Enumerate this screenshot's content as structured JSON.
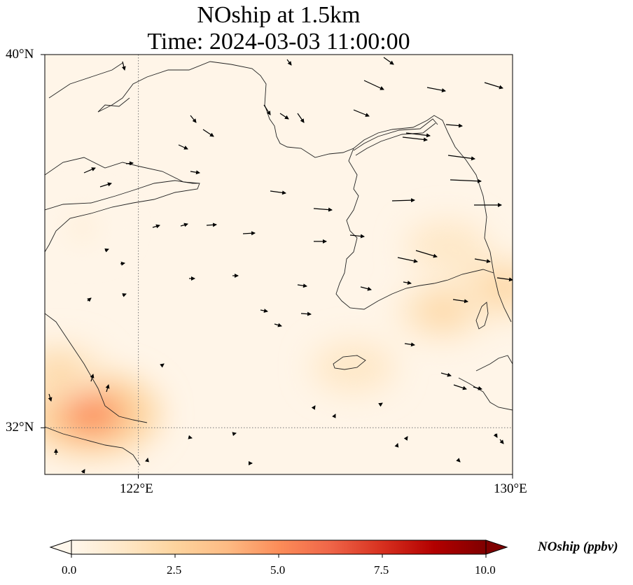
{
  "title": {
    "line1": "NOship at 1.5km",
    "line2": "Time: 2024-03-03 11:00:00"
  },
  "map": {
    "extent": {
      "lon_min": 120,
      "lon_max": 130,
      "lat_min": 31,
      "lat_max": 40
    },
    "lat_ticks": [
      {
        "value": 40,
        "label": "40°N"
      },
      {
        "value": 32,
        "label": "32°N"
      }
    ],
    "lon_ticks": [
      {
        "value": 122,
        "label": "122°E"
      },
      {
        "value": 130,
        "label": "130°E"
      }
    ],
    "gridlines": "dotted at 122°E and 32°N",
    "coastline_color": "#000000",
    "wind_arrow_color": "#000000"
  },
  "chart_data": {
    "type": "heatmap",
    "variable": "NOship",
    "units": "ppbv",
    "colormap": "OrRd",
    "vmin": 0.0,
    "vmax": 10.0,
    "extend": "both",
    "hotspots": [
      {
        "lon": 121.0,
        "lat": 32.3,
        "value": 4.5
      },
      {
        "lon": 120.3,
        "lat": 33.2,
        "value": 2.0
      },
      {
        "lon": 126.6,
        "lat": 33.3,
        "value": 1.6
      },
      {
        "lon": 128.5,
        "lat": 34.5,
        "value": 2.0
      },
      {
        "lon": 129.8,
        "lat": 35.0,
        "value": 2.5
      },
      {
        "lon": 128.6,
        "lat": 35.9,
        "value": 1.5
      },
      {
        "lon": 120.8,
        "lat": 36.3,
        "value": 0.8
      }
    ]
  },
  "colorbar": {
    "label": "NOship (ppbv)",
    "ticks": [
      "0.0",
      "2.5",
      "5.0",
      "7.5",
      "10.0"
    ],
    "stops": [
      "#fff7ec",
      "#fee8c8",
      "#fdd49e",
      "#fdbb84",
      "#fc8d59",
      "#ef6548",
      "#d7301f",
      "#b30000",
      "#7f0000"
    ]
  }
}
